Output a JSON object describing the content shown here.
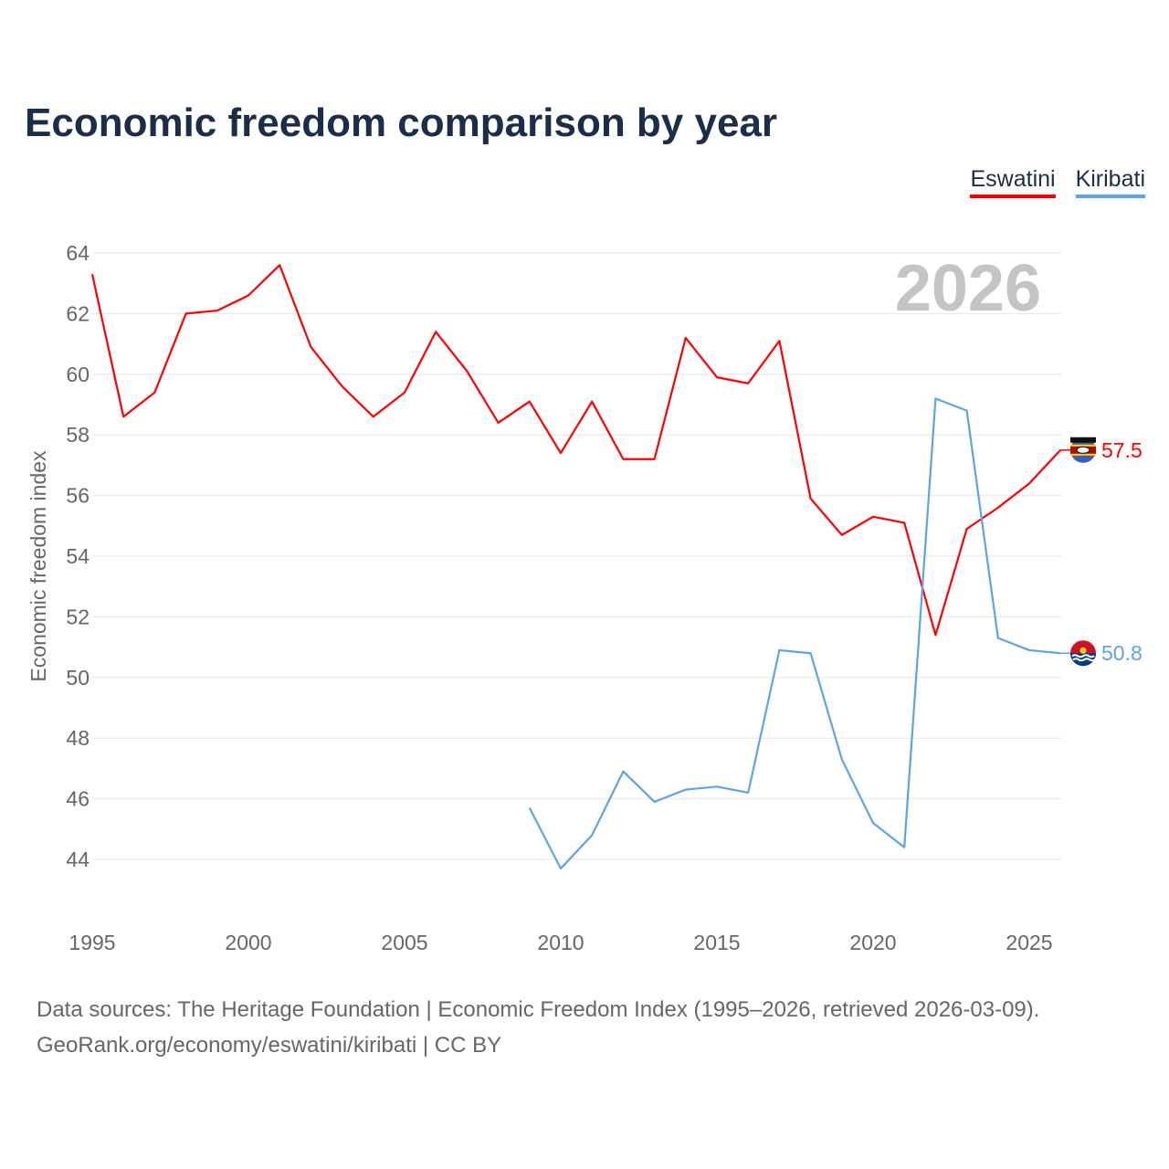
{
  "title": "Economic freedom comparison by year",
  "watermark_year": "2026",
  "source_line1": "Data sources: The Heritage Foundation | Economic Freedom Index (1995–2026, retrieved 2026-03-09).",
  "source_line2": "GeoRank.org/economy/eswatini/kiribati | CC BY",
  "chart_data": {
    "type": "line",
    "title": "Economic freedom comparison by year",
    "xlabel": "",
    "ylabel": "Economic freedom index",
    "xlim": [
      1995,
      2026
    ],
    "ylim": [
      42.5,
      64.5
    ],
    "xticks": [
      1995,
      2000,
      2005,
      2010,
      2015,
      2020,
      2025
    ],
    "yticks": [
      44,
      46,
      48,
      50,
      52,
      54,
      56,
      58,
      60,
      62,
      64
    ],
    "grid": true,
    "legend": "top-right",
    "series": [
      {
        "name": "Eswatini",
        "color": "#ff0000",
        "end_label": "57.5",
        "x": [
          1995,
          1996,
          1997,
          1998,
          1999,
          2000,
          2001,
          2002,
          2003,
          2004,
          2005,
          2006,
          2007,
          2008,
          2009,
          2010,
          2011,
          2012,
          2013,
          2014,
          2015,
          2016,
          2017,
          2018,
          2019,
          2020,
          2021,
          2022,
          2023,
          2024,
          2025,
          2026
        ],
        "values": [
          63.3,
          58.6,
          59.4,
          62.0,
          62.1,
          62.6,
          63.6,
          60.9,
          59.6,
          58.6,
          59.4,
          61.4,
          60.1,
          58.4,
          59.1,
          57.4,
          59.1,
          57.2,
          57.2,
          61.2,
          59.9,
          59.7,
          61.1,
          55.9,
          54.7,
          55.3,
          55.1,
          51.4,
          54.9,
          55.6,
          56.4,
          57.5
        ]
      },
      {
        "name": "Kiribati",
        "color": "#5ba4e6",
        "end_label": "50.8",
        "x": [
          2009,
          2010,
          2011,
          2012,
          2013,
          2014,
          2015,
          2016,
          2017,
          2018,
          2019,
          2020,
          2021,
          2022,
          2023,
          2024,
          2025,
          2026
        ],
        "values": [
          45.7,
          43.7,
          44.8,
          46.9,
          45.9,
          46.3,
          46.4,
          46.2,
          50.9,
          50.8,
          47.3,
          45.2,
          44.4,
          59.2,
          58.8,
          51.3,
          50.9,
          50.8
        ]
      }
    ]
  }
}
